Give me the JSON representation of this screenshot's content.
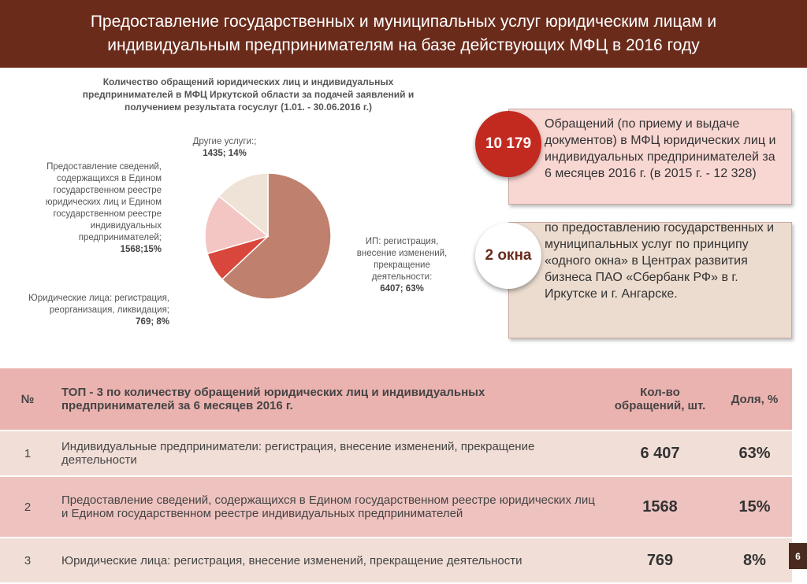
{
  "header": {
    "title": "Предоставление государственных и муниципальных услуг юридическим лицам и индивидуальным предпринимателям на базе действующих МФЦ в 2016 году"
  },
  "chart_data": {
    "type": "pie",
    "title": "Количество обращений юридических лиц и индивидуальных предпринимателей в МФЦ Иркутской области за подачей заявлений и получением результата  госуслуг (1.01. - 30.06.2016 г.)",
    "categories": [
      "ИП: регистрация, внесение изменений, прекращение деятельности:",
      "Юридические лица: регистрация, реорганизация, ликвидация;",
      "Предоставление сведений, содержащихся в Едином государственном реестре юридических лиц и Едином государственном реестре индивидуальных предпринимателей;",
      "Другие услуги:;"
    ],
    "values": [
      6407,
      769,
      1568,
      1435
    ],
    "value_labels": [
      "6407; 63%",
      "769; 8%",
      "1568;15%",
      "1435; 14%"
    ],
    "colors": [
      "#c0806e",
      "#d9463b",
      "#f3c6c3",
      "#efe2d6"
    ]
  },
  "callouts": [
    {
      "number": "10 179",
      "text": "Обращений (по приему и выдаче документов) в МФЦ юридических лиц и индивидуальных предпринимателей за 6 месяцев 2016 г. (в 2015 г. - 12 328)"
    },
    {
      "number": "2 окна",
      "text": "по предоставлению государственных и муниципальных услуг по принципу «одного окна» в Центрах развития бизнеса ПАО «Сбербанк РФ» в г. Иркутске и г. Ангарске."
    }
  ],
  "table": {
    "header": [
      "№",
      "ТОП - 3 по количеству обращений юридических лиц и индивидуальных предпринимателей за 6 месяцев 2016 г.",
      "Кол-во обращений, шт.",
      "Доля, %"
    ],
    "rows": [
      [
        "1",
        "Индивидуальные предприниматели: регистрация, внесение изменений, прекращение деятельности",
        "6 407",
        "63%"
      ],
      [
        "2",
        "Предоставление сведений, содержащихся в Едином государственном реестре юридических лиц и Едином государственном реестре индивидуальных предпринимателей",
        "1568",
        "15%"
      ],
      [
        "3",
        "Юридические лица: регистрация, внесение изменений, прекращение деятельности",
        "769",
        "8%"
      ]
    ]
  },
  "page_number": "6"
}
